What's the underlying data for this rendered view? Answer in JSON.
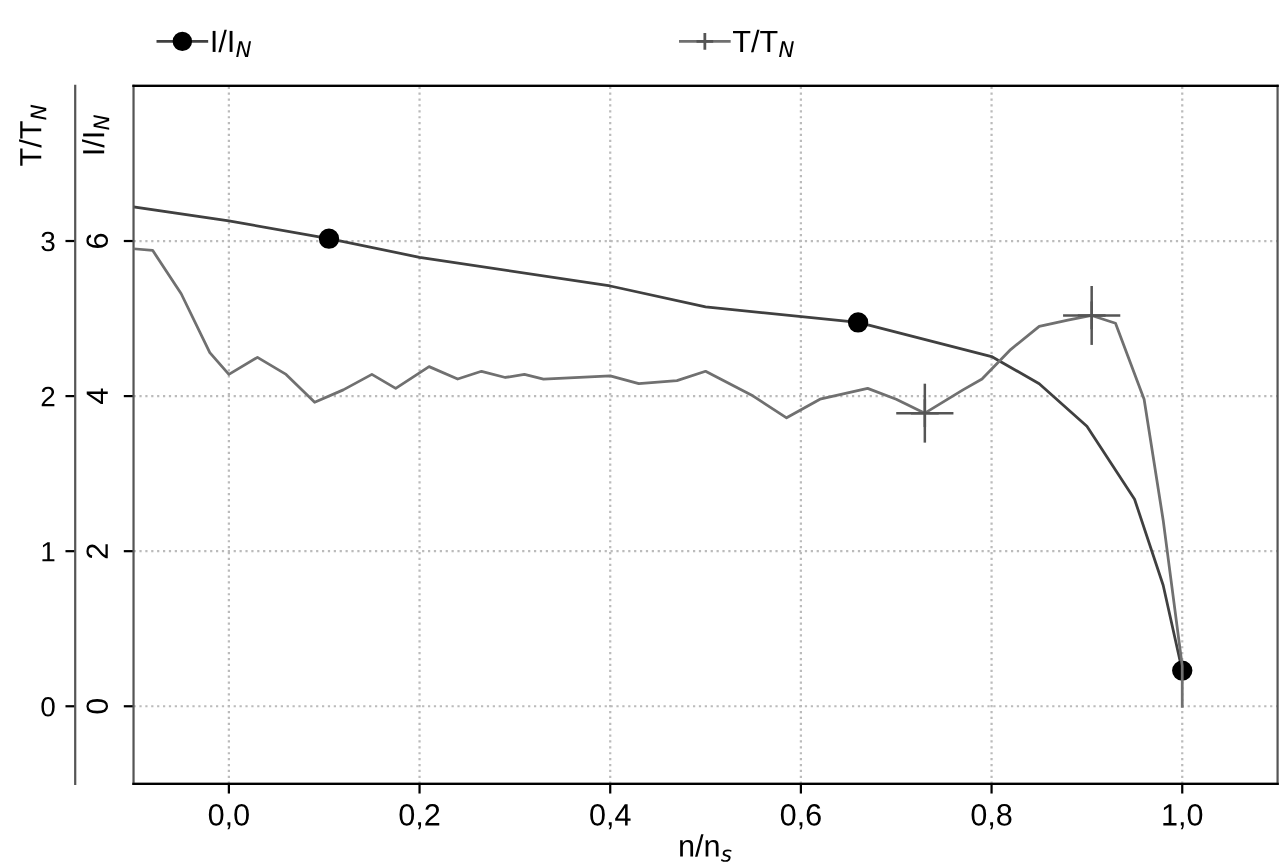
{
  "chart_data": {
    "type": "line",
    "xlabel": "n/n$_{s}$",
    "ylabel": "I/I$_{N}$",
    "y2label": "T/T$_{N}$",
    "xlim": [
      -0.1,
      1.1
    ],
    "xticks": [
      {
        "value": 0.0,
        "label": "0,0"
      },
      {
        "value": 0.2,
        "label": "0,2"
      },
      {
        "value": 0.4,
        "label": "0,4"
      },
      {
        "value": 0.6,
        "label": "0,6"
      },
      {
        "value": 0.8,
        "label": "0,8"
      },
      {
        "value": 1.0,
        "label": "1,0"
      }
    ],
    "ylim": [
      -1,
      8
    ],
    "yticks": [
      0,
      2,
      4,
      6
    ],
    "y2lim": [
      -0.5,
      4
    ],
    "y2ticks": [
      0,
      1,
      2,
      3
    ],
    "grid": true,
    "legend": "top",
    "line_style": "solid",
    "series": [
      {
        "name": "I/I$_{N}$",
        "color": "#404040",
        "x": [
          -0.1,
          0.0,
          0.105,
          0.2,
          0.4,
          0.5,
          0.66,
          0.8,
          0.85,
          0.9,
          0.95,
          0.98,
          1.0
        ],
        "values": [
          6.44,
          6.26,
          6.03,
          5.79,
          5.42,
          5.15,
          4.95,
          4.51,
          4.16,
          3.61,
          2.67,
          1.56,
          0.46
        ]
      },
      {
        "name": "T/T$_{N}$",
        "axis": "y2",
        "color": "#707070",
        "x": [
          -0.1,
          -0.08,
          -0.05,
          -0.02,
          0.0,
          0.03,
          0.06,
          0.09,
          0.12,
          0.15,
          0.175,
          0.21,
          0.24,
          0.265,
          0.29,
          0.31,
          0.33,
          0.4,
          0.43,
          0.47,
          0.5,
          0.55,
          0.585,
          0.62,
          0.67,
          0.7,
          0.73,
          0.77,
          0.79,
          0.82,
          0.85,
          0.88,
          0.905,
          0.93,
          0.96,
          0.98,
          1.0,
          1.0
        ],
        "values": [
          2.95,
          2.94,
          2.66,
          2.28,
          2.14,
          2.25,
          2.14,
          1.96,
          2.04,
          2.14,
          2.05,
          2.19,
          2.11,
          2.16,
          2.12,
          2.14,
          2.11,
          2.13,
          2.08,
          2.1,
          2.16,
          2.0,
          1.86,
          1.98,
          2.05,
          1.98,
          1.89,
          2.04,
          2.11,
          2.3,
          2.45,
          2.49,
          2.52,
          2.47,
          1.98,
          1.2,
          0.26,
          0.0
        ]
      },
      {
        "type": "scatter",
        "marker": "circle",
        "color": "#000000",
        "x": [
          0.105,
          0.66,
          1.0
        ],
        "values": [
          6.03,
          4.95,
          0.46
        ]
      },
      {
        "type": "scatter",
        "marker": "cross",
        "axis": "y2",
        "color": "#555555",
        "x": [
          0.73,
          0.905
        ],
        "values": [
          1.89,
          2.52
        ],
        "errors": [
          0.19,
          0.19
        ],
        "xerrors": [
          0.03,
          0.03
        ]
      }
    ]
  }
}
